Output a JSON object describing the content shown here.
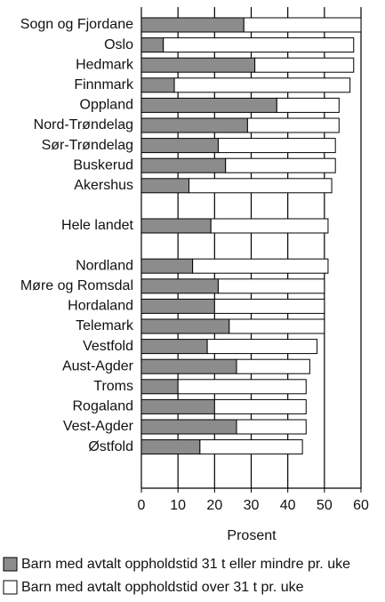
{
  "chart_data": {
    "type": "stacked-barh",
    "x_label": "Prosent",
    "categories": [
      "Sogn og Fjordane",
      "Oslo",
      "Hedmark",
      "Finnmark",
      "Oppland",
      "Nord-Trøndelag",
      "Sør-Trøndelag",
      "Buskerud",
      "Akershus",
      "Hele landet",
      "Nordland",
      "Møre og Romsdal",
      "Hordaland",
      "Telemark",
      "Vestfold",
      "Aust-Agder",
      "Troms",
      "Rogaland",
      "Vest-Agder",
      "Østfold"
    ],
    "series": [
      {
        "name": "Barn med avtalt oppholdstid 31 t eller mindre pr. uke",
        "color": "#8c8c8c",
        "values": [
          28,
          6,
          31,
          9,
          37,
          29,
          21,
          23,
          13,
          19,
          14,
          21,
          20,
          24,
          18,
          26,
          10,
          20,
          26,
          16
        ]
      },
      {
        "name": "Barn med avtalt oppholdstid over 31 t pr. uke",
        "color": "#ffffff",
        "values": [
          32,
          52,
          27,
          48,
          17,
          25,
          32,
          30,
          39,
          32,
          37,
          29,
          30,
          26,
          30,
          20,
          35,
          25,
          19,
          28
        ]
      }
    ],
    "xlim": [
      0,
      60
    ],
    "xticks": [
      0,
      10,
      20,
      30,
      40,
      50,
      60
    ],
    "grid": true
  }
}
